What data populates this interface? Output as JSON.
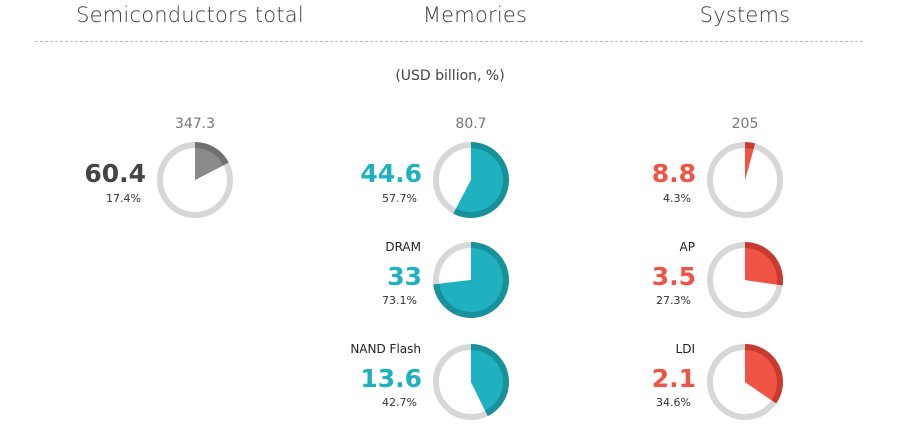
{
  "columns": {
    "semiconductors": "Semiconductors total",
    "memories": "Memories",
    "systems": "Systems"
  },
  "unit_note": "(USD billion, %)",
  "chart_data": {
    "type": "pie",
    "title": "",
    "unit": "USD billion, %",
    "colors": {
      "ring": "#d7d7d7",
      "semiconductors": "#8a8a8a",
      "semiconductors_dark": "#707070",
      "semiconductors_text": "#444444",
      "memories": "#1fb1bf",
      "memories_dark": "#17919c",
      "systems": "#f05444",
      "systems_dark": "#c93a2e"
    },
    "groups": [
      {
        "key": "semiconductors",
        "total": "347.3",
        "items": [
          {
            "name": "",
            "value": "60.4",
            "percent": 17.4,
            "percent_label": "17.4%"
          }
        ]
      },
      {
        "key": "memories",
        "total": "80.7",
        "items": [
          {
            "name": "",
            "value": "44.6",
            "percent": 57.7,
            "percent_label": "57.7%"
          },
          {
            "name": "DRAM",
            "value": "33",
            "percent": 73.1,
            "percent_label": "73.1%"
          },
          {
            "name": "NAND Flash",
            "value": "13.6",
            "percent": 42.7,
            "percent_label": "42.7%"
          }
        ]
      },
      {
        "key": "systems",
        "total": "205",
        "items": [
          {
            "name": "",
            "value": "8.8",
            "percent": 4.3,
            "percent_label": "4.3%"
          },
          {
            "name": "AP",
            "value": "3.5",
            "percent": 27.3,
            "percent_label": "27.3%"
          },
          {
            "name": "LDI",
            "value": "2.1",
            "percent": 34.6,
            "percent_label": "34.6%"
          }
        ]
      }
    ]
  }
}
